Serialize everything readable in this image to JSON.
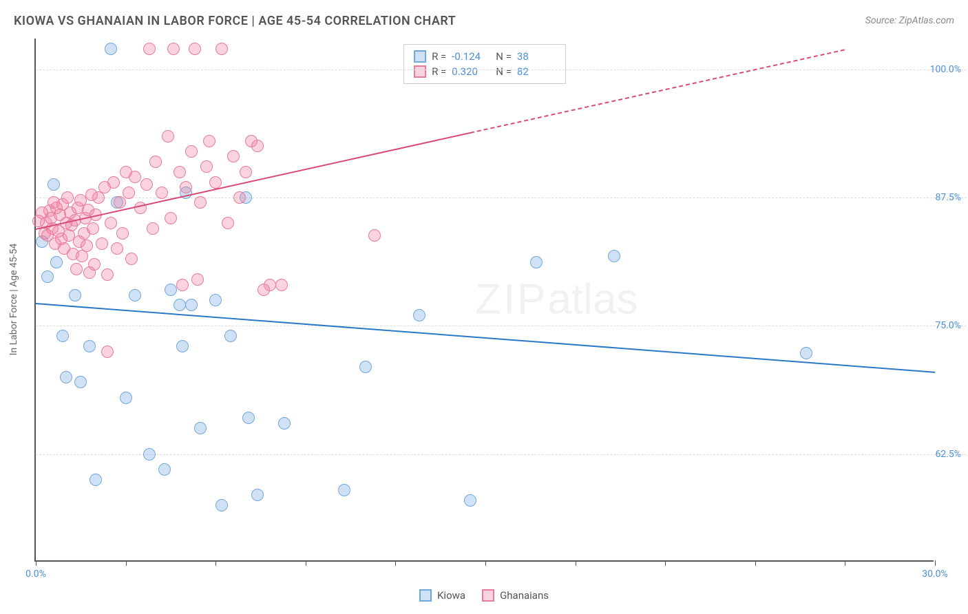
{
  "title": "KIOWA VS GHANAIAN IN LABOR FORCE | AGE 45-54 CORRELATION CHART",
  "source": "Source: ZipAtlas.com",
  "y_axis_label": "In Labor Force | Age 45-54",
  "watermark_a": "ZIP",
  "watermark_b": "atlas",
  "chart": {
    "type": "scatter",
    "xlim": [
      0,
      30
    ],
    "ylim": [
      52,
      103
    ],
    "x_ticks": [
      0,
      3,
      6,
      9,
      12,
      15,
      18,
      21,
      24,
      27,
      30
    ],
    "x_tick_labels": {
      "0": "0.0%",
      "30": "30.0%"
    },
    "y_ticks": [
      62.5,
      75.0,
      87.5,
      100.0
    ],
    "y_tick_labels": [
      "62.5%",
      "75.0%",
      "87.5%",
      "100.0%"
    ],
    "background_color": "#ffffff",
    "grid_color": "#dddddd",
    "axis_color": "#555555",
    "marker_radius": 9,
    "series": [
      {
        "name": "Kiowa",
        "fill": "rgba(120,170,225,0.35)",
        "stroke": "#6fa8dc",
        "trend_color": "#2b78c4",
        "R": "-0.124",
        "N": "38",
        "trend": {
          "x1": 0,
          "y1": 77.2,
          "x2": 30,
          "y2": 70.5,
          "solid_until_x": 30
        },
        "points": [
          [
            0.2,
            83.2
          ],
          [
            0.4,
            79.8
          ],
          [
            0.6,
            88.8
          ],
          [
            0.7,
            81.2
          ],
          [
            0.9,
            74.0
          ],
          [
            1.0,
            70.0
          ],
          [
            1.3,
            78.0
          ],
          [
            1.5,
            69.5
          ],
          [
            1.8,
            73.0
          ],
          [
            2.0,
            60.0
          ],
          [
            2.5,
            102.0
          ],
          [
            2.7,
            87.0
          ],
          [
            3.0,
            68.0
          ],
          [
            3.3,
            78.0
          ],
          [
            3.8,
            62.5
          ],
          [
            4.3,
            61.0
          ],
          [
            4.5,
            78.5
          ],
          [
            4.8,
            77.0
          ],
          [
            4.9,
            73.0
          ],
          [
            5.0,
            88.0
          ],
          [
            5.2,
            77.0
          ],
          [
            5.5,
            65.0
          ],
          [
            6.0,
            77.5
          ],
          [
            6.2,
            57.5
          ],
          [
            6.5,
            74.0
          ],
          [
            7.0,
            87.5
          ],
          [
            7.1,
            66.0
          ],
          [
            7.4,
            58.5
          ],
          [
            8.3,
            65.5
          ],
          [
            10.3,
            59.0
          ],
          [
            11.0,
            71.0
          ],
          [
            12.8,
            76.0
          ],
          [
            14.5,
            58.0
          ],
          [
            16.7,
            81.2
          ],
          [
            19.3,
            81.8
          ],
          [
            25.7,
            72.3
          ]
        ]
      },
      {
        "name": "Ghanaians",
        "fill": "rgba(240,130,160,0.35)",
        "stroke": "#e87a9a",
        "trend_color": "#d84a78",
        "R": "0.320",
        "N": "82",
        "trend": {
          "x1": 0,
          "y1": 84.5,
          "x2": 27,
          "y2": 102.0,
          "solid_until_x": 14.5
        },
        "points": [
          [
            0.1,
            85.2
          ],
          [
            0.2,
            86.0
          ],
          [
            0.3,
            84.0
          ],
          [
            0.35,
            85.0
          ],
          [
            0.4,
            83.8
          ],
          [
            0.45,
            86.2
          ],
          [
            0.5,
            85.5
          ],
          [
            0.55,
            84.5
          ],
          [
            0.6,
            87.0
          ],
          [
            0.65,
            83.0
          ],
          [
            0.7,
            86.5
          ],
          [
            0.75,
            84.2
          ],
          [
            0.8,
            85.8
          ],
          [
            0.85,
            83.5
          ],
          [
            0.9,
            86.8
          ],
          [
            0.95,
            82.5
          ],
          [
            1.0,
            85.0
          ],
          [
            1.05,
            87.5
          ],
          [
            1.1,
            83.8
          ],
          [
            1.15,
            86.0
          ],
          [
            1.2,
            84.8
          ],
          [
            1.25,
            82.0
          ],
          [
            1.3,
            85.3
          ],
          [
            1.35,
            80.5
          ],
          [
            1.4,
            86.5
          ],
          [
            1.45,
            83.2
          ],
          [
            1.5,
            87.2
          ],
          [
            1.55,
            81.8
          ],
          [
            1.6,
            84.0
          ],
          [
            1.65,
            85.5
          ],
          [
            1.7,
            82.8
          ],
          [
            1.75,
            86.3
          ],
          [
            1.8,
            80.2
          ],
          [
            1.85,
            87.8
          ],
          [
            1.9,
            84.5
          ],
          [
            1.95,
            81.0
          ],
          [
            2.0,
            85.8
          ],
          [
            2.1,
            87.5
          ],
          [
            2.2,
            83.0
          ],
          [
            2.3,
            88.5
          ],
          [
            2.4,
            80.0
          ],
          [
            2.5,
            85.0
          ],
          [
            2.6,
            89.0
          ],
          [
            2.7,
            82.5
          ],
          [
            2.8,
            87.0
          ],
          [
            2.9,
            84.0
          ],
          [
            3.0,
            90.0
          ],
          [
            3.1,
            88.0
          ],
          [
            3.2,
            81.5
          ],
          [
            3.3,
            89.5
          ],
          [
            3.5,
            86.5
          ],
          [
            3.7,
            88.8
          ],
          [
            3.8,
            102.0
          ],
          [
            3.9,
            84.5
          ],
          [
            4.0,
            91.0
          ],
          [
            4.2,
            88.0
          ],
          [
            4.4,
            93.5
          ],
          [
            4.5,
            85.5
          ],
          [
            4.6,
            102.0
          ],
          [
            4.8,
            90.0
          ],
          [
            5.0,
            88.5
          ],
          [
            5.2,
            92.0
          ],
          [
            5.3,
            102.0
          ],
          [
            5.5,
            87.0
          ],
          [
            5.7,
            90.5
          ],
          [
            5.8,
            93.0
          ],
          [
            6.0,
            89.0
          ],
          [
            6.2,
            102.0
          ],
          [
            6.4,
            85.0
          ],
          [
            6.6,
            91.5
          ],
          [
            6.8,
            87.5
          ],
          [
            7.0,
            90.0
          ],
          [
            7.2,
            93.0
          ],
          [
            7.4,
            92.5
          ],
          [
            7.8,
            79.0
          ],
          [
            2.4,
            72.5
          ],
          [
            4.9,
            79.0
          ],
          [
            5.4,
            79.5
          ],
          [
            7.6,
            78.5
          ],
          [
            8.2,
            79.0
          ],
          [
            11.3,
            83.8
          ]
        ]
      }
    ],
    "stats_labels": {
      "R": "R  =",
      "N": "N  ="
    },
    "legend": {
      "items": [
        {
          "label": "Kiowa",
          "fill": "rgba(120,170,225,0.35)",
          "stroke": "#6fa8dc"
        },
        {
          "label": "Ghanaians",
          "fill": "rgba(240,130,160,0.35)",
          "stroke": "#e87a9a"
        }
      ]
    }
  }
}
